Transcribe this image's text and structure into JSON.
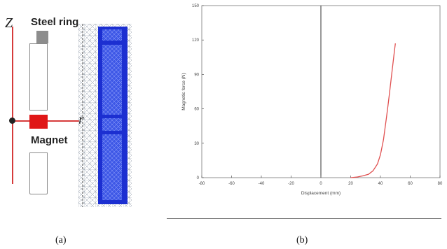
{
  "panel_a": {
    "z_label": "Z",
    "r_label": "r",
    "steel_ring_label": "Steel ring",
    "magnet_label": "Magnet"
  },
  "captions": {
    "a": "(a)",
    "b": "(b)"
  },
  "colors": {
    "magnet": "#e01616",
    "axis": "#d63b3b",
    "steel_ring": "#8d8d8d",
    "mesh": "#1c2fd1",
    "curve": "#e05050"
  },
  "chart_data": {
    "type": "line",
    "title": "",
    "xlabel": "Displacement (mm)",
    "ylabel": "Magnetic force (N)",
    "xlim": [
      -80,
      80
    ],
    "ylim": [
      0,
      150
    ],
    "xticks": [
      -80,
      -60,
      -40,
      -20,
      0,
      20,
      40,
      60,
      80
    ],
    "yticks": [
      0,
      30,
      60,
      90,
      120,
      150
    ],
    "xtick_labels": [
      "-80",
      "-60",
      "-40",
      "-20",
      "0",
      "20",
      "40",
      "60",
      "80"
    ],
    "ytick_labels": [
      "0",
      "30",
      "60",
      "90",
      "120",
      "150"
    ],
    "grid": false,
    "vertical_line_at_x": 0,
    "series": [
      {
        "color": "#e05050",
        "x": [
          20,
          24,
          28,
          32,
          35,
          38,
          40,
          42,
          44,
          45,
          46,
          47,
          48,
          49,
          50
        ],
        "y": [
          0,
          0.5,
          1.5,
          3,
          6,
          12,
          20,
          33,
          52,
          62,
          73,
          84,
          95,
          106,
          117
        ]
      }
    ]
  }
}
